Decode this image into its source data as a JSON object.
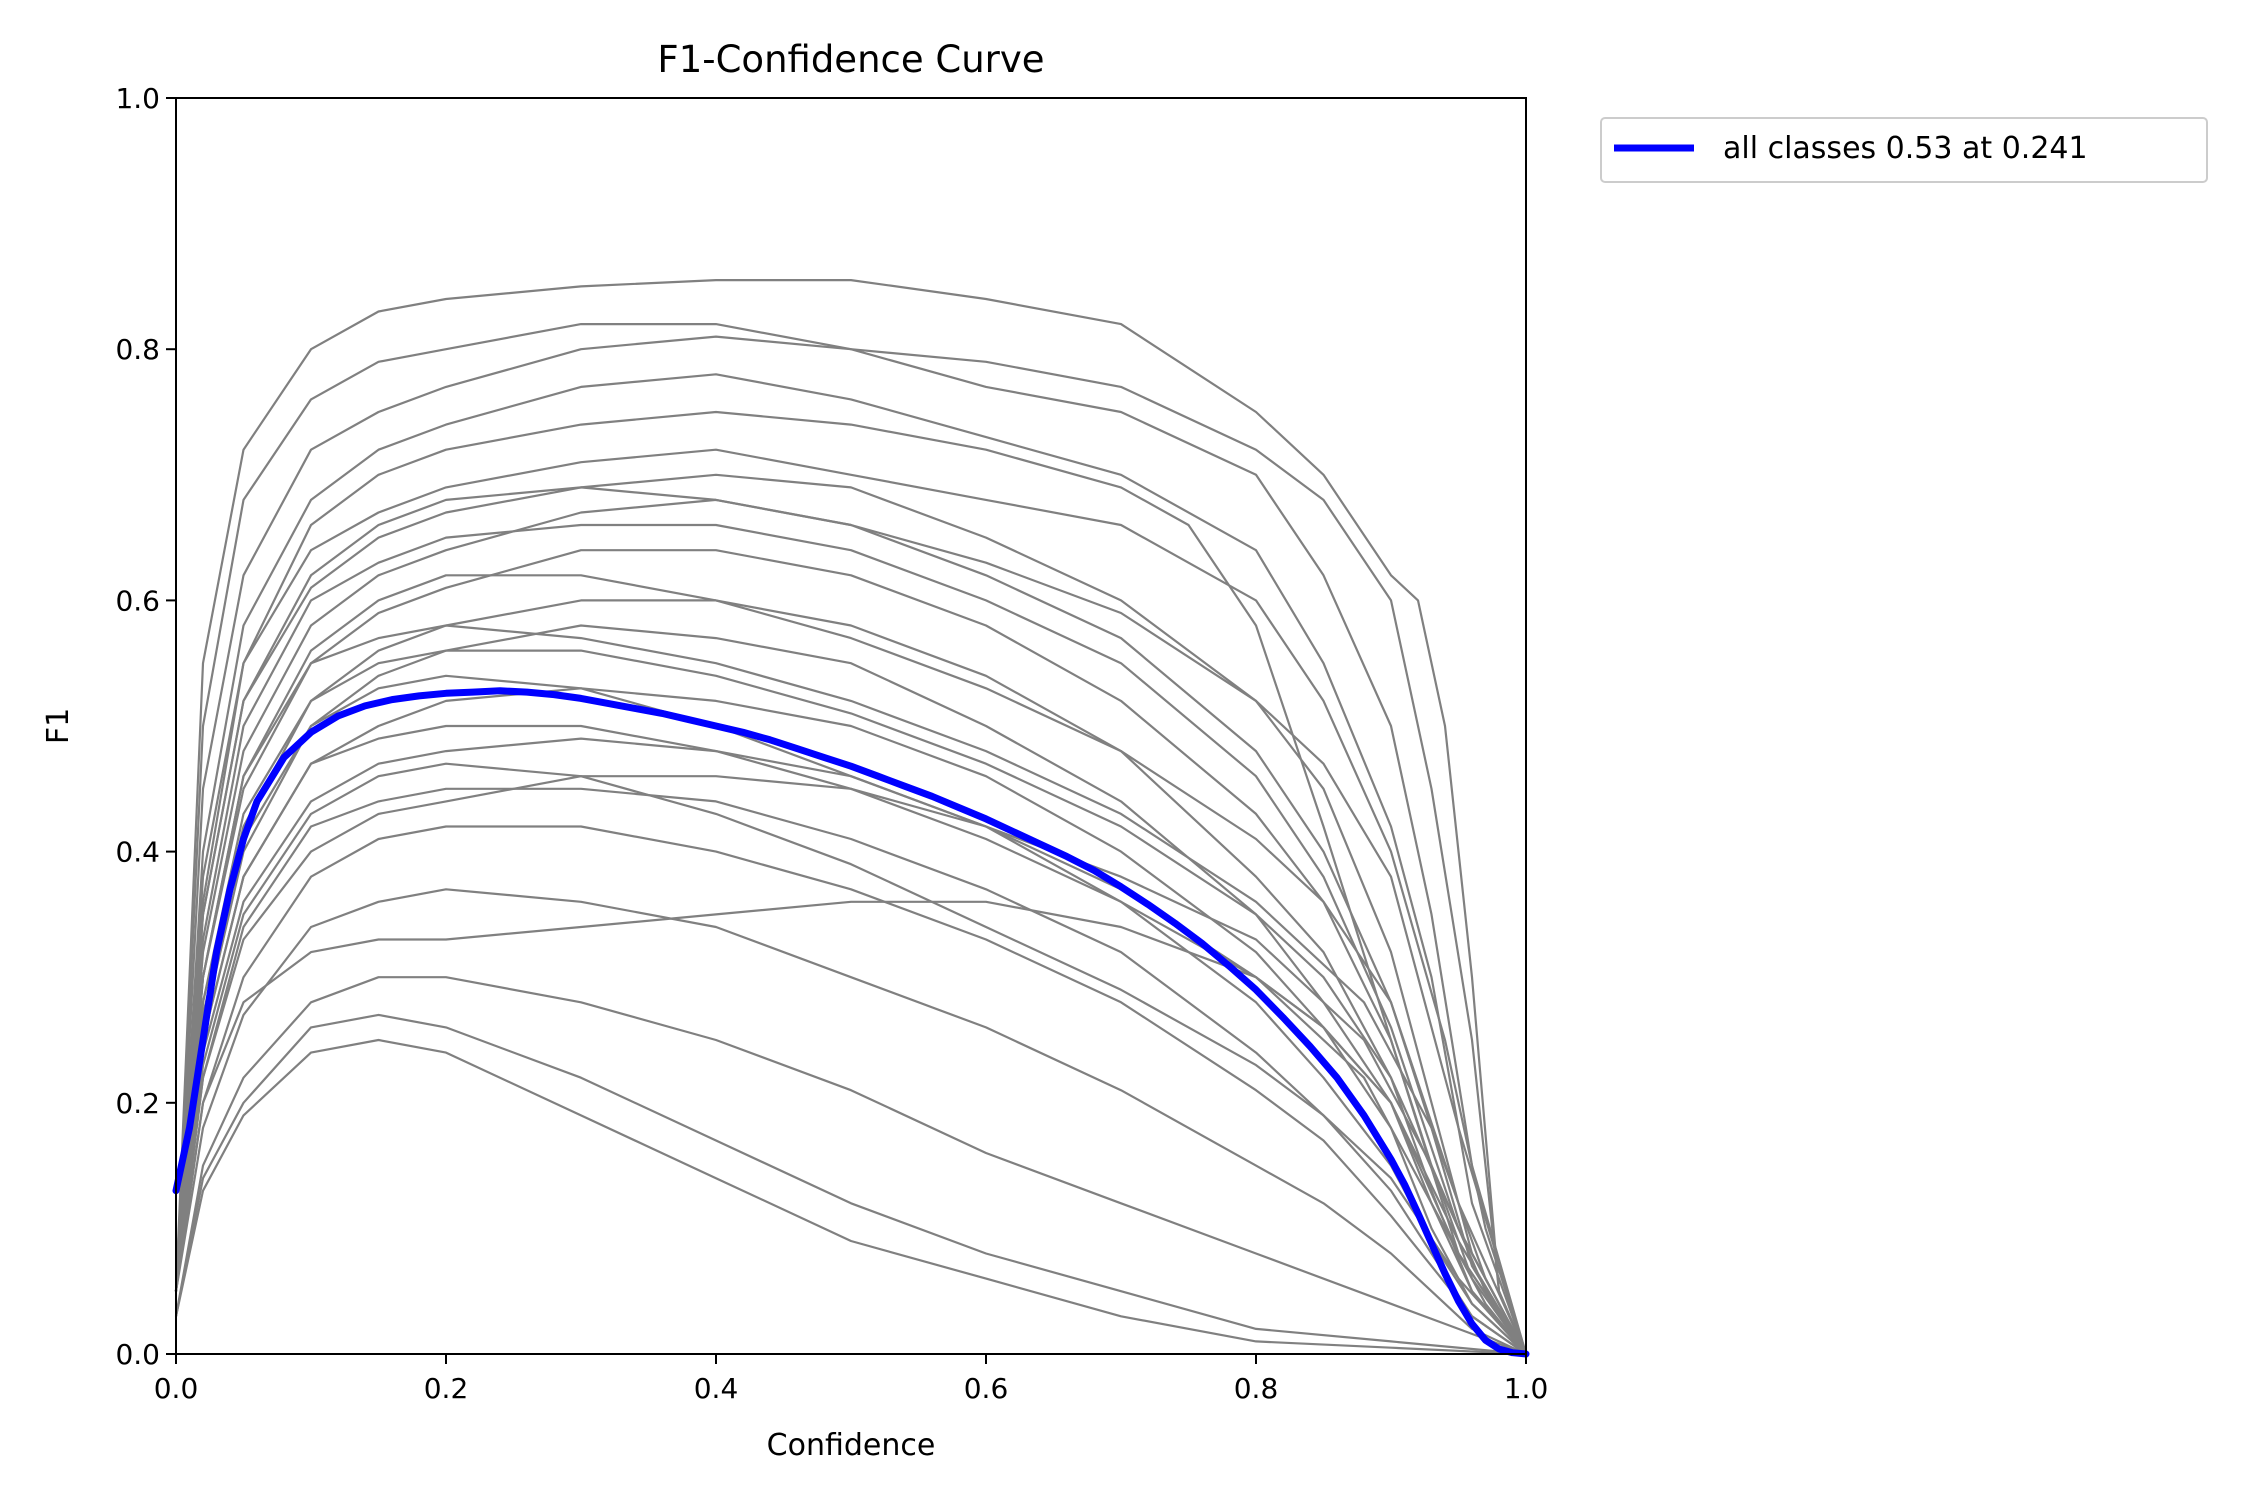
{
  "chart_data": {
    "type": "line",
    "title": "F1-Confidence Curve",
    "xlabel": "Confidence",
    "ylabel": "F1",
    "xlim": [
      0,
      1
    ],
    "ylim": [
      0,
      1
    ],
    "x_ticks": [
      "0.0",
      "0.2",
      "0.4",
      "0.6",
      "0.8",
      "1.0"
    ],
    "y_ticks": [
      "0.0",
      "0.2",
      "0.4",
      "0.6",
      "0.8",
      "1.0"
    ],
    "grid": false,
    "legend_placement": "outside-top-right",
    "class_line_color": "#808080",
    "class_curves": [
      {
        "x": [
          0.0,
          0.02,
          0.05,
          0.1,
          0.15,
          0.2,
          0.3,
          0.4,
          0.5,
          0.6,
          0.7,
          0.8,
          0.85,
          0.9,
          0.92,
          0.94,
          0.96,
          0.98,
          1.0
        ],
        "y": [
          0.05,
          0.55,
          0.72,
          0.8,
          0.83,
          0.84,
          0.85,
          0.855,
          0.855,
          0.84,
          0.82,
          0.75,
          0.7,
          0.62,
          0.6,
          0.5,
          0.3,
          0.05,
          0.0
        ]
      },
      {
        "x": [
          0.0,
          0.02,
          0.05,
          0.1,
          0.15,
          0.2,
          0.3,
          0.4,
          0.5,
          0.6,
          0.7,
          0.8,
          0.85,
          0.9,
          0.93,
          0.96,
          0.98,
          1.0
        ],
        "y": [
          0.05,
          0.5,
          0.68,
          0.76,
          0.79,
          0.8,
          0.82,
          0.82,
          0.8,
          0.79,
          0.77,
          0.72,
          0.68,
          0.6,
          0.45,
          0.25,
          0.05,
          0.0
        ]
      },
      {
        "x": [
          0.0,
          0.02,
          0.05,
          0.1,
          0.15,
          0.2,
          0.3,
          0.4,
          0.5,
          0.6,
          0.7,
          0.8,
          0.85,
          0.9,
          0.93,
          0.96,
          1.0
        ],
        "y": [
          0.05,
          0.45,
          0.62,
          0.72,
          0.75,
          0.77,
          0.8,
          0.81,
          0.8,
          0.77,
          0.75,
          0.7,
          0.62,
          0.5,
          0.35,
          0.15,
          0.0
        ]
      },
      {
        "x": [
          0.0,
          0.02,
          0.05,
          0.1,
          0.15,
          0.2,
          0.3,
          0.4,
          0.5,
          0.6,
          0.7,
          0.8,
          0.85,
          0.9,
          0.93,
          0.96,
          1.0
        ],
        "y": [
          0.05,
          0.4,
          0.58,
          0.68,
          0.72,
          0.74,
          0.77,
          0.78,
          0.76,
          0.73,
          0.7,
          0.64,
          0.55,
          0.42,
          0.3,
          0.12,
          0.0
        ]
      },
      {
        "x": [
          0.0,
          0.02,
          0.05,
          0.1,
          0.15,
          0.2,
          0.3,
          0.4,
          0.5,
          0.6,
          0.7,
          0.8,
          0.85,
          0.9,
          0.94,
          0.97,
          1.0
        ],
        "y": [
          0.05,
          0.38,
          0.55,
          0.64,
          0.67,
          0.69,
          0.71,
          0.72,
          0.7,
          0.68,
          0.66,
          0.6,
          0.52,
          0.4,
          0.25,
          0.1,
          0.0
        ]
      },
      {
        "x": [
          0.0,
          0.02,
          0.05,
          0.1,
          0.15,
          0.2,
          0.3,
          0.4,
          0.5,
          0.6,
          0.7,
          0.8,
          0.85,
          0.9,
          0.93,
          0.96,
          1.0
        ],
        "y": [
          0.05,
          0.35,
          0.52,
          0.61,
          0.65,
          0.67,
          0.69,
          0.7,
          0.69,
          0.65,
          0.6,
          0.52,
          0.45,
          0.32,
          0.2,
          0.08,
          0.0
        ]
      },
      {
        "x": [
          0.0,
          0.02,
          0.05,
          0.1,
          0.15,
          0.2,
          0.3,
          0.4,
          0.5,
          0.6,
          0.7,
          0.8,
          0.85,
          0.9,
          0.93,
          0.96,
          1.0
        ],
        "y": [
          0.05,
          0.32,
          0.48,
          0.58,
          0.62,
          0.64,
          0.67,
          0.68,
          0.66,
          0.62,
          0.57,
          0.48,
          0.4,
          0.28,
          0.18,
          0.07,
          0.0
        ]
      },
      {
        "x": [
          0.0,
          0.02,
          0.05,
          0.1,
          0.15,
          0.2,
          0.3,
          0.4,
          0.5,
          0.6,
          0.7,
          0.8,
          0.85,
          0.9,
          0.93,
          0.96,
          1.0
        ],
        "y": [
          0.05,
          0.3,
          0.45,
          0.55,
          0.59,
          0.61,
          0.64,
          0.64,
          0.62,
          0.58,
          0.52,
          0.43,
          0.36,
          0.25,
          0.15,
          0.06,
          0.0
        ]
      },
      {
        "x": [
          0.0,
          0.02,
          0.05,
          0.1,
          0.15,
          0.2,
          0.3,
          0.4,
          0.5,
          0.6,
          0.7,
          0.8,
          0.85,
          0.9,
          0.93,
          0.96,
          1.0
        ],
        "y": [
          0.05,
          0.28,
          0.42,
          0.52,
          0.56,
          0.58,
          0.6,
          0.6,
          0.58,
          0.54,
          0.48,
          0.38,
          0.32,
          0.22,
          0.13,
          0.05,
          0.0
        ]
      },
      {
        "x": [
          0.0,
          0.02,
          0.05,
          0.1,
          0.15,
          0.2,
          0.3,
          0.4,
          0.5,
          0.6,
          0.7,
          0.8,
          0.85,
          0.9,
          0.93,
          0.96,
          1.0
        ],
        "y": [
          0.05,
          0.26,
          0.4,
          0.5,
          0.54,
          0.56,
          0.58,
          0.57,
          0.55,
          0.5,
          0.44,
          0.35,
          0.28,
          0.2,
          0.12,
          0.05,
          0.0
        ]
      },
      {
        "x": [
          0.0,
          0.02,
          0.05,
          0.1,
          0.15,
          0.2,
          0.3,
          0.4,
          0.5,
          0.6,
          0.7,
          0.8,
          0.85,
          0.9,
          0.93,
          0.96,
          1.0
        ],
        "y": [
          0.05,
          0.25,
          0.38,
          0.47,
          0.5,
          0.52,
          0.53,
          0.52,
          0.5,
          0.46,
          0.4,
          0.32,
          0.26,
          0.18,
          0.1,
          0.04,
          0.0
        ]
      },
      {
        "x": [
          0.0,
          0.02,
          0.05,
          0.1,
          0.15,
          0.2,
          0.3,
          0.4,
          0.5,
          0.6,
          0.7,
          0.8,
          0.85,
          0.9,
          0.93,
          0.96,
          1.0
        ],
        "y": [
          0.05,
          0.24,
          0.36,
          0.44,
          0.47,
          0.48,
          0.49,
          0.48,
          0.46,
          0.42,
          0.36,
          0.28,
          0.22,
          0.15,
          0.09,
          0.04,
          0.0
        ]
      },
      {
        "x": [
          0.0,
          0.02,
          0.05,
          0.1,
          0.15,
          0.2,
          0.3,
          0.4,
          0.5,
          0.6,
          0.7,
          0.8,
          0.85,
          0.9,
          0.93,
          0.96,
          1.0
        ],
        "y": [
          0.05,
          0.22,
          0.34,
          0.42,
          0.44,
          0.45,
          0.45,
          0.44,
          0.41,
          0.37,
          0.32,
          0.24,
          0.19,
          0.13,
          0.08,
          0.03,
          0.0
        ]
      },
      {
        "x": [
          0.0,
          0.02,
          0.05,
          0.1,
          0.15,
          0.2,
          0.3,
          0.4,
          0.5,
          0.6,
          0.7,
          0.8,
          0.85,
          0.9,
          0.93,
          0.96,
          1.0
        ],
        "y": [
          0.05,
          0.2,
          0.3,
          0.38,
          0.41,
          0.42,
          0.42,
          0.4,
          0.37,
          0.33,
          0.28,
          0.21,
          0.17,
          0.11,
          0.07,
          0.03,
          0.0
        ]
      },
      {
        "x": [
          0.0,
          0.02,
          0.05,
          0.1,
          0.15,
          0.2,
          0.3,
          0.4,
          0.5,
          0.6,
          0.7,
          0.8,
          0.85,
          0.9,
          0.93,
          0.96,
          1.0
        ],
        "y": [
          0.05,
          0.18,
          0.27,
          0.34,
          0.36,
          0.37,
          0.36,
          0.34,
          0.3,
          0.26,
          0.21,
          0.15,
          0.12,
          0.08,
          0.05,
          0.02,
          0.0
        ]
      },
      {
        "x": [
          0.0,
          0.02,
          0.05,
          0.1,
          0.15,
          0.2,
          0.3,
          0.4,
          0.5,
          0.6,
          0.7,
          0.8,
          0.9,
          0.95,
          1.0
        ],
        "y": [
          0.03,
          0.15,
          0.22,
          0.28,
          0.3,
          0.3,
          0.28,
          0.25,
          0.21,
          0.16,
          0.12,
          0.08,
          0.04,
          0.02,
          0.0
        ]
      },
      {
        "x": [
          0.0,
          0.02,
          0.05,
          0.1,
          0.15,
          0.2,
          0.3,
          0.4,
          0.5,
          0.6,
          0.7,
          0.8,
          0.9,
          1.0
        ],
        "y": [
          0.03,
          0.14,
          0.2,
          0.26,
          0.27,
          0.26,
          0.22,
          0.17,
          0.12,
          0.08,
          0.05,
          0.02,
          0.01,
          0.0
        ]
      },
      {
        "x": [
          0.0,
          0.02,
          0.05,
          0.1,
          0.15,
          0.2,
          0.3,
          0.4,
          0.5,
          0.6,
          0.7,
          0.8,
          0.9,
          1.0
        ],
        "y": [
          0.03,
          0.13,
          0.19,
          0.24,
          0.25,
          0.24,
          0.19,
          0.14,
          0.09,
          0.06,
          0.03,
          0.01,
          0.005,
          0.0
        ]
      },
      {
        "x": [
          0.0,
          0.02,
          0.05,
          0.1,
          0.15,
          0.2,
          0.3,
          0.4,
          0.5,
          0.6,
          0.7,
          0.8,
          0.88,
          0.93,
          0.97,
          1.0
        ],
        "y": [
          0.05,
          0.3,
          0.46,
          0.55,
          0.57,
          0.58,
          0.57,
          0.55,
          0.52,
          0.48,
          0.43,
          0.36,
          0.28,
          0.18,
          0.06,
          0.0
        ]
      },
      {
        "x": [
          0.0,
          0.02,
          0.05,
          0.1,
          0.15,
          0.2,
          0.3,
          0.4,
          0.5,
          0.6,
          0.7,
          0.8,
          0.88,
          0.93,
          0.97,
          1.0
        ],
        "y": [
          0.05,
          0.22,
          0.33,
          0.4,
          0.43,
          0.44,
          0.46,
          0.46,
          0.45,
          0.42,
          0.38,
          0.33,
          0.25,
          0.15,
          0.05,
          0.0
        ]
      },
      {
        "x": [
          0.0,
          0.02,
          0.05,
          0.1,
          0.15,
          0.2,
          0.3,
          0.4,
          0.5,
          0.6,
          0.7,
          0.8,
          0.88,
          0.93,
          0.97,
          1.0
        ],
        "y": [
          0.05,
          0.2,
          0.28,
          0.32,
          0.33,
          0.33,
          0.34,
          0.35,
          0.36,
          0.36,
          0.34,
          0.3,
          0.22,
          0.12,
          0.04,
          0.0
        ]
      },
      {
        "x": [
          0.0,
          0.02,
          0.05,
          0.1,
          0.15,
          0.2,
          0.3,
          0.4,
          0.5,
          0.6,
          0.7,
          0.75,
          0.8,
          0.85,
          0.9,
          0.95,
          1.0
        ],
        "y": [
          0.05,
          0.36,
          0.55,
          0.66,
          0.7,
          0.72,
          0.74,
          0.75,
          0.74,
          0.72,
          0.69,
          0.66,
          0.58,
          0.42,
          0.25,
          0.08,
          0.0
        ]
      },
      {
        "x": [
          0.0,
          0.02,
          0.05,
          0.1,
          0.15,
          0.2,
          0.3,
          0.4,
          0.5,
          0.6,
          0.7,
          0.8,
          0.85,
          0.9,
          0.95,
          1.0
        ],
        "y": [
          0.05,
          0.33,
          0.5,
          0.6,
          0.63,
          0.65,
          0.66,
          0.66,
          0.64,
          0.6,
          0.55,
          0.46,
          0.38,
          0.26,
          0.1,
          0.0
        ]
      },
      {
        "x": [
          0.0,
          0.02,
          0.05,
          0.1,
          0.15,
          0.2,
          0.3,
          0.4,
          0.5,
          0.6,
          0.7,
          0.8,
          0.85,
          0.9,
          0.95,
          1.0
        ],
        "y": [
          0.05,
          0.28,
          0.43,
          0.52,
          0.55,
          0.56,
          0.56,
          0.54,
          0.51,
          0.47,
          0.42,
          0.35,
          0.3,
          0.22,
          0.1,
          0.0
        ]
      },
      {
        "x": [
          0.0,
          0.02,
          0.05,
          0.1,
          0.15,
          0.2,
          0.3,
          0.4,
          0.5,
          0.6,
          0.7,
          0.8,
          0.85,
          0.9,
          0.95,
          1.0
        ],
        "y": [
          0.05,
          0.25,
          0.38,
          0.47,
          0.49,
          0.5,
          0.5,
          0.48,
          0.45,
          0.41,
          0.36,
          0.3,
          0.26,
          0.2,
          0.09,
          0.0
        ]
      },
      {
        "x": [
          0.0,
          0.02,
          0.05,
          0.1,
          0.15,
          0.2,
          0.3,
          0.4,
          0.5,
          0.6,
          0.7,
          0.8,
          0.85,
          0.9,
          0.95,
          1.0
        ],
        "y": [
          0.05,
          0.23,
          0.35,
          0.43,
          0.46,
          0.47,
          0.46,
          0.43,
          0.39,
          0.34,
          0.29,
          0.23,
          0.19,
          0.14,
          0.06,
          0.0
        ]
      },
      {
        "x": [
          0.0,
          0.02,
          0.05,
          0.1,
          0.15,
          0.2,
          0.3,
          0.4,
          0.5,
          0.6,
          0.7,
          0.8,
          0.85,
          0.9,
          0.95,
          1.0
        ],
        "y": [
          0.05,
          0.35,
          0.52,
          0.62,
          0.66,
          0.68,
          0.69,
          0.68,
          0.66,
          0.63,
          0.59,
          0.52,
          0.47,
          0.38,
          0.18,
          0.0
        ]
      },
      {
        "x": [
          0.0,
          0.02,
          0.05,
          0.1,
          0.15,
          0.2,
          0.3,
          0.4,
          0.5,
          0.6,
          0.7,
          0.8,
          0.85,
          0.9,
          0.95,
          1.0
        ],
        "y": [
          0.05,
          0.3,
          0.46,
          0.56,
          0.6,
          0.62,
          0.62,
          0.6,
          0.57,
          0.53,
          0.48,
          0.41,
          0.36,
          0.28,
          0.12,
          0.0
        ]
      },
      {
        "x": [
          0.0,
          0.02,
          0.05,
          0.1,
          0.15,
          0.2,
          0.3,
          0.4,
          0.5,
          0.6,
          0.7,
          0.8,
          0.85,
          0.9,
          0.95,
          1.0
        ],
        "y": [
          0.05,
          0.27,
          0.41,
          0.5,
          0.53,
          0.54,
          0.53,
          0.5,
          0.46,
          0.42,
          0.37,
          0.3,
          0.26,
          0.2,
          0.08,
          0.0
        ]
      }
    ],
    "series": [
      {
        "name": "all classes 0.53 at 0.241",
        "color": "#0000ff",
        "x": [
          0.0,
          0.01,
          0.02,
          0.03,
          0.04,
          0.05,
          0.06,
          0.08,
          0.1,
          0.12,
          0.14,
          0.16,
          0.18,
          0.2,
          0.22,
          0.24,
          0.26,
          0.28,
          0.3,
          0.32,
          0.34,
          0.36,
          0.38,
          0.4,
          0.42,
          0.44,
          0.46,
          0.48,
          0.5,
          0.52,
          0.54,
          0.56,
          0.58,
          0.6,
          0.62,
          0.64,
          0.66,
          0.68,
          0.7,
          0.72,
          0.74,
          0.76,
          0.78,
          0.8,
          0.82,
          0.84,
          0.86,
          0.88,
          0.9,
          0.91,
          0.92,
          0.93,
          0.94,
          0.95,
          0.96,
          0.97,
          0.98,
          0.99,
          1.0
        ],
        "y": [
          0.13,
          0.18,
          0.25,
          0.32,
          0.37,
          0.41,
          0.44,
          0.475,
          0.495,
          0.508,
          0.516,
          0.521,
          0.524,
          0.526,
          0.527,
          0.528,
          0.527,
          0.525,
          0.522,
          0.518,
          0.514,
          0.51,
          0.505,
          0.5,
          0.495,
          0.489,
          0.482,
          0.475,
          0.468,
          0.46,
          0.452,
          0.444,
          0.435,
          0.426,
          0.416,
          0.406,
          0.396,
          0.385,
          0.372,
          0.358,
          0.343,
          0.327,
          0.309,
          0.29,
          0.268,
          0.245,
          0.22,
          0.19,
          0.155,
          0.135,
          0.112,
          0.088,
          0.064,
          0.042,
          0.024,
          0.011,
          0.004,
          0.001,
          0.0
        ]
      }
    ]
  }
}
